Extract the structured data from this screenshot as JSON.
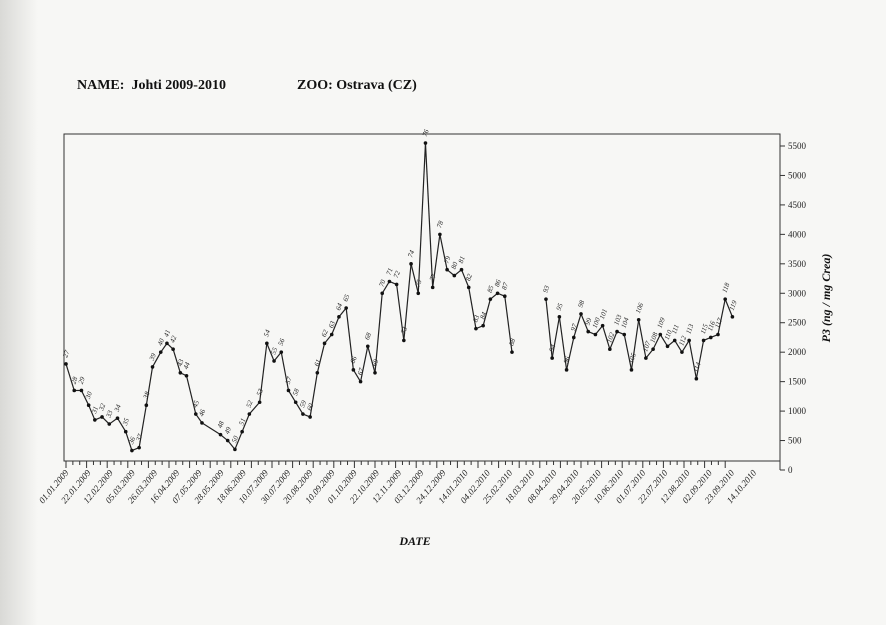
{
  "header": {
    "name_label": "NAME:",
    "name_value": "Johti 2009-2010",
    "zoo_label": "ZOO:",
    "zoo_value": "Ostrava (CZ)"
  },
  "chart_data": {
    "type": "line",
    "xlabel": "DATE",
    "ylabel": "P3 (ng / mg Crea)",
    "ylim": [
      0,
      5500
    ],
    "yticks": [
      0,
      500,
      1000,
      1500,
      2000,
      2500,
      3000,
      3500,
      4000,
      4500,
      5000,
      5500
    ],
    "x_tick_labels": [
      "01.01.2009",
      "22.01.2009",
      "12.02.2009",
      "05.03.2009",
      "26.03.2009",
      "16.04.2009",
      "07.05.2009",
      "28.05.2009",
      "18.06.2009",
      "10.07.2009",
      "30.07.2009",
      "20.08.2009",
      "10.09.2009",
      "01.10.2009",
      "22.10.2009",
      "12.11.2009",
      "03.12.2009",
      "24.12.2009",
      "14.01.2010",
      "04.02.2010",
      "25.02.2010",
      "18.03.2010",
      "08.04.2010",
      "29.04.2010",
      "20.05.2010",
      "10.06.2010",
      "01.07.2010",
      "22.07.2010",
      "12.08.2010",
      "02.09.2010",
      "23.09.2010",
      "14.10.2010"
    ],
    "grid": false,
    "legend": "none",
    "series": [
      {
        "points": [
          {
            "x": 0,
            "y": 1800,
            "label": "27"
          },
          {
            "x": 0.4,
            "y": 1350,
            "label": "28"
          },
          {
            "x": 0.75,
            "y": 1350,
            "label": "29"
          },
          {
            "x": 1.1,
            "y": 1100,
            "label": "30"
          },
          {
            "x": 1.4,
            "y": 850,
            "label": "31"
          },
          {
            "x": 1.75,
            "y": 900,
            "label": "32"
          },
          {
            "x": 2.1,
            "y": 780,
            "label": "33"
          },
          {
            "x": 2.5,
            "y": 880,
            "label": "34"
          },
          {
            "x": 2.9,
            "y": 650,
            "label": "35"
          },
          {
            "x": 3.2,
            "y": 330,
            "label": "36"
          },
          {
            "x": 3.55,
            "y": 380,
            "label": "37"
          },
          {
            "x": 3.9,
            "y": 1100,
            "label": "38"
          },
          {
            "x": 4.2,
            "y": 1750,
            "label": "39"
          },
          {
            "x": 4.6,
            "y": 2000,
            "label": "40"
          },
          {
            "x": 4.9,
            "y": 2150,
            "label": "41"
          },
          {
            "x": 5.2,
            "y": 2050,
            "label": "42"
          },
          {
            "x": 5.55,
            "y": 1650,
            "label": "43"
          },
          {
            "x": 5.85,
            "y": 1600,
            "label": "44"
          },
          {
            "x": 6.3,
            "y": 950,
            "label": "45"
          },
          {
            "x": 6.6,
            "y": 800,
            "label": "46"
          },
          {
            "x": 7.5,
            "y": 600,
            "label": "48"
          },
          {
            "x": 7.85,
            "y": 500,
            "label": "49"
          },
          {
            "x": 8.2,
            "y": 350,
            "label": "50"
          },
          {
            "x": 8.55,
            "y": 650,
            "label": "51"
          },
          {
            "x": 8.9,
            "y": 950,
            "label": "52"
          },
          {
            "x": 9.4,
            "y": 1150,
            "label": "53"
          },
          {
            "x": 9.75,
            "y": 2150,
            "label": "54"
          },
          {
            "x": 10.1,
            "y": 1850,
            "label": "55"
          },
          {
            "x": 10.45,
            "y": 2000,
            "label": "56"
          },
          {
            "x": 10.8,
            "y": 1350,
            "label": "57"
          },
          {
            "x": 11.15,
            "y": 1150,
            "label": "58"
          },
          {
            "x": 11.5,
            "y": 950,
            "label": "59"
          },
          {
            "x": 11.85,
            "y": 900,
            "label": "60"
          },
          {
            "x": 12.2,
            "y": 1650,
            "label": "61"
          },
          {
            "x": 12.55,
            "y": 2150,
            "label": "62"
          },
          {
            "x": 12.9,
            "y": 2300,
            "label": "63"
          },
          {
            "x": 13.25,
            "y": 2600,
            "label": "64"
          },
          {
            "x": 13.6,
            "y": 2750,
            "label": "65"
          },
          {
            "x": 13.95,
            "y": 1700,
            "label": "66"
          },
          {
            "x": 14.3,
            "y": 1500,
            "label": "67"
          },
          {
            "x": 14.65,
            "y": 2100,
            "label": "68"
          },
          {
            "x": 15.0,
            "y": 1650,
            "label": "69"
          },
          {
            "x": 15.35,
            "y": 3000,
            "label": "70"
          },
          {
            "x": 15.7,
            "y": 3200,
            "label": "71"
          },
          {
            "x": 16.05,
            "y": 3150,
            "label": "72"
          },
          {
            "x": 16.4,
            "y": 2200,
            "label": "73"
          },
          {
            "x": 16.75,
            "y": 3500,
            "label": "74"
          },
          {
            "x": 17.1,
            "y": 3000,
            "label": "75"
          },
          {
            "x": 17.45,
            "y": 5550,
            "label": "76"
          },
          {
            "x": 17.8,
            "y": 3100,
            "label": "77"
          },
          {
            "x": 18.15,
            "y": 4000,
            "label": "78"
          },
          {
            "x": 18.5,
            "y": 3400,
            "label": "79"
          },
          {
            "x": 18.85,
            "y": 3300,
            "label": "80"
          },
          {
            "x": 19.2,
            "y": 3400,
            "label": "81"
          },
          {
            "x": 19.55,
            "y": 3100,
            "label": "82"
          },
          {
            "x": 19.9,
            "y": 2400,
            "label": "83"
          },
          {
            "x": 20.25,
            "y": 2450,
            "label": "84"
          },
          {
            "x": 20.6,
            "y": 2900,
            "label": "85"
          },
          {
            "x": 20.95,
            "y": 3000,
            "label": "86"
          },
          {
            "x": 21.3,
            "y": 2950,
            "label": "87"
          },
          {
            "x": 21.65,
            "y": 2000,
            "label": "88"
          },
          {
            "x": 23.3,
            "y": 2900,
            "label": "93",
            "break_before": true
          },
          {
            "x": 23.6,
            "y": 1900,
            "label": "94"
          },
          {
            "x": 23.95,
            "y": 2600,
            "label": "95"
          },
          {
            "x": 24.3,
            "y": 1700,
            "label": "96"
          },
          {
            "x": 24.65,
            "y": 2250,
            "label": "97"
          },
          {
            "x": 25.0,
            "y": 2650,
            "label": "98"
          },
          {
            "x": 25.35,
            "y": 2350,
            "label": "99"
          },
          {
            "x": 25.7,
            "y": 2300,
            "label": "100"
          },
          {
            "x": 26.05,
            "y": 2450,
            "label": "101"
          },
          {
            "x": 26.4,
            "y": 2050,
            "label": "102"
          },
          {
            "x": 26.75,
            "y": 2350,
            "label": "103"
          },
          {
            "x": 27.1,
            "y": 2300,
            "label": "104"
          },
          {
            "x": 27.45,
            "y": 1700,
            "label": "105"
          },
          {
            "x": 27.8,
            "y": 2550,
            "label": "106"
          },
          {
            "x": 28.15,
            "y": 1900,
            "label": "107"
          },
          {
            "x": 28.5,
            "y": 2050,
            "label": "108"
          },
          {
            "x": 28.85,
            "y": 2300,
            "label": "109"
          },
          {
            "x": 29.2,
            "y": 2100,
            "label": "110"
          },
          {
            "x": 29.55,
            "y": 2200,
            "label": "111"
          },
          {
            "x": 29.9,
            "y": 2000,
            "label": "112"
          },
          {
            "x": 30.25,
            "y": 2200,
            "label": "113"
          },
          {
            "x": 30.6,
            "y": 1550,
            "label": "114"
          },
          {
            "x": 30.95,
            "y": 2200,
            "label": "115"
          },
          {
            "x": 31.3,
            "y": 2250,
            "label": "116"
          },
          {
            "x": 31.65,
            "y": 2300,
            "label": "117"
          },
          {
            "x": 32.0,
            "y": 2900,
            "label": "118"
          },
          {
            "x": 32.35,
            "y": 2600,
            "label": "119"
          }
        ]
      }
    ]
  }
}
